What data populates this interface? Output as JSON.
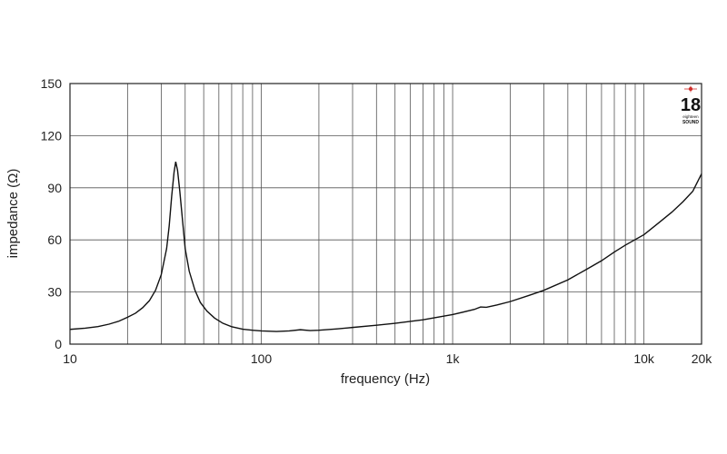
{
  "chart_data": {
    "type": "line",
    "title": "",
    "xlabel": "frequency (Hz)",
    "ylabel": "impedance (Ω)",
    "x_scale": "log",
    "xlim": [
      10,
      20000
    ],
    "ylim": [
      0,
      150
    ],
    "grid": true,
    "x_tick_labels": [
      {
        "value": 10,
        "label": "10"
      },
      {
        "value": 100,
        "label": "100"
      },
      {
        "value": 1000,
        "label": "1k"
      },
      {
        "value": 10000,
        "label": "10k"
      },
      {
        "value": 20000,
        "label": "20k"
      }
    ],
    "y_tick_labels": [
      {
        "value": 0,
        "label": "0"
      },
      {
        "value": 30,
        "label": "30"
      },
      {
        "value": 60,
        "label": "60"
      },
      {
        "value": 90,
        "label": "90"
      },
      {
        "value": 120,
        "label": "120"
      },
      {
        "value": 150,
        "label": "150"
      }
    ],
    "x_gridlines": [
      20,
      30,
      40,
      50,
      60,
      70,
      80,
      90,
      100,
      200,
      300,
      400,
      500,
      600,
      700,
      800,
      900,
      1000,
      2000,
      3000,
      4000,
      5000,
      6000,
      7000,
      8000,
      9000,
      10000
    ],
    "y_gridlines": [
      30,
      60,
      90,
      120
    ],
    "series": [
      {
        "color": "#111111",
        "points": [
          [
            10,
            8.5
          ],
          [
            12,
            9.2
          ],
          [
            14,
            10.1
          ],
          [
            16,
            11.5
          ],
          [
            18,
            13.2
          ],
          [
            20,
            15.5
          ],
          [
            22,
            17.8
          ],
          [
            24,
            21.0
          ],
          [
            26,
            25.0
          ],
          [
            28,
            31.0
          ],
          [
            30,
            40.0
          ],
          [
            32,
            55.0
          ],
          [
            33,
            68.0
          ],
          [
            34,
            85.0
          ],
          [
            35,
            99.0
          ],
          [
            35.7,
            105.0
          ],
          [
            36.5,
            100.0
          ],
          [
            37.5,
            88.0
          ],
          [
            39,
            68.0
          ],
          [
            40,
            55.0
          ],
          [
            42,
            42.0
          ],
          [
            45,
            31.0
          ],
          [
            48,
            24.0
          ],
          [
            52,
            19.0
          ],
          [
            57,
            15.0
          ],
          [
            63,
            12.0
          ],
          [
            70,
            10.0
          ],
          [
            80,
            8.6
          ],
          [
            90,
            8.0
          ],
          [
            100,
            7.6
          ],
          [
            120,
            7.3
          ],
          [
            140,
            7.6
          ],
          [
            160,
            8.3
          ],
          [
            180,
            7.8
          ],
          [
            200,
            8.0
          ],
          [
            250,
            8.8
          ],
          [
            300,
            9.6
          ],
          [
            400,
            10.9
          ],
          [
            500,
            12.0
          ],
          [
            700,
            14.0
          ],
          [
            1000,
            17.0
          ],
          [
            1300,
            20.0
          ],
          [
            1400,
            21.4
          ],
          [
            1500,
            21.2
          ],
          [
            1700,
            22.5
          ],
          [
            2000,
            24.5
          ],
          [
            2500,
            28.0
          ],
          [
            3000,
            31.0
          ],
          [
            4000,
            37.0
          ],
          [
            5000,
            43.0
          ],
          [
            6000,
            48.0
          ],
          [
            7000,
            53.0
          ],
          [
            8000,
            57.0
          ],
          [
            10000,
            63.0
          ],
          [
            12000,
            70.0
          ],
          [
            14000,
            76.0
          ],
          [
            16000,
            82.0
          ],
          [
            18000,
            88.0
          ],
          [
            20000,
            98.0
          ]
        ]
      }
    ]
  },
  "logo": {
    "number": "18",
    "top_line": "eighteen",
    "bottom_line": "SOUND"
  }
}
